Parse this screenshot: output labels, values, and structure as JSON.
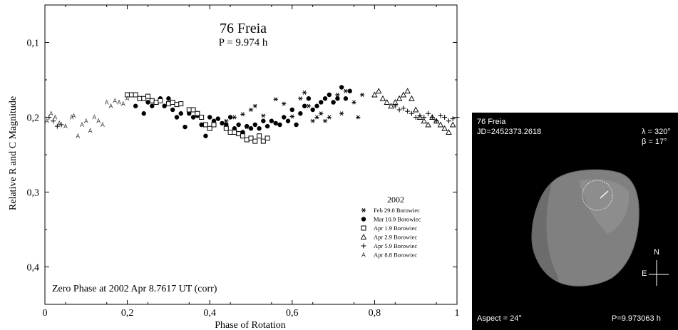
{
  "chart_data": {
    "type": "scatter",
    "title": "76 Freia",
    "subtitle": "P = 9.974 h",
    "xlabel": "Phase of Rotation",
    "ylabel": "Relative R and C Magnitude",
    "xlim": [
      0,
      1
    ],
    "ylim": [
      0.45,
      0.05
    ],
    "y_inverted": true,
    "x_ticks": [
      0,
      0.2,
      0.4,
      0.6,
      0.8,
      1
    ],
    "x_tick_labels": [
      "0",
      "0,2",
      "0,4",
      "0,6",
      "0,8",
      "1"
    ],
    "y_ticks": [
      0.1,
      0.2,
      0.3,
      0.4
    ],
    "y_tick_labels": [
      "0,1",
      "0,2",
      "0,3",
      "0,4"
    ],
    "annotation": "Zero Phase at 2002 Apr 8.7617 UT (corr)",
    "legend_title": "2002",
    "legend_position": "bottom-right",
    "series": [
      {
        "name": "Feb 29.0 Borowiec",
        "marker": "asterisk",
        "x": [
          0.44,
          0.46,
          0.48,
          0.49,
          0.5,
          0.51,
          0.53,
          0.56,
          0.58,
          0.6,
          0.62,
          0.63,
          0.64,
          0.65,
          0.66,
          0.67,
          0.68,
          0.69,
          0.7,
          0.71,
          0.72,
          0.73,
          0.75,
          0.76,
          0.77
        ],
        "y": [
          0.205,
          0.2,
          0.196,
          0.213,
          0.19,
          0.185,
          0.198,
          0.176,
          0.182,
          0.199,
          0.175,
          0.167,
          0.185,
          0.205,
          0.2,
          0.195,
          0.205,
          0.2,
          0.18,
          0.17,
          0.195,
          0.165,
          0.18,
          0.2,
          0.17
        ]
      },
      {
        "name": "Mar 10.9 Borowiec",
        "marker": "filled-circle",
        "x": [
          0.22,
          0.24,
          0.25,
          0.26,
          0.27,
          0.28,
          0.29,
          0.3,
          0.31,
          0.32,
          0.33,
          0.34,
          0.35,
          0.36,
          0.37,
          0.38,
          0.39,
          0.4,
          0.41,
          0.42,
          0.43,
          0.44,
          0.45,
          0.46,
          0.47,
          0.48,
          0.49,
          0.5,
          0.51,
          0.52,
          0.53,
          0.54,
          0.55,
          0.56,
          0.57,
          0.58,
          0.59,
          0.6,
          0.61,
          0.62,
          0.63,
          0.64,
          0.65,
          0.66,
          0.67,
          0.68,
          0.69,
          0.7,
          0.71,
          0.72,
          0.73,
          0.74
        ],
        "y": [
          0.185,
          0.195,
          0.18,
          0.185,
          0.18,
          0.175,
          0.185,
          0.175,
          0.19,
          0.2,
          0.195,
          0.213,
          0.195,
          0.2,
          0.198,
          0.21,
          0.225,
          0.2,
          0.205,
          0.202,
          0.208,
          0.21,
          0.2,
          0.215,
          0.21,
          0.22,
          0.212,
          0.215,
          0.21,
          0.215,
          0.205,
          0.212,
          0.205,
          0.208,
          0.21,
          0.2,
          0.205,
          0.19,
          0.21,
          0.195,
          0.185,
          0.175,
          0.19,
          0.185,
          0.18,
          0.175,
          0.17,
          0.18,
          0.175,
          0.16,
          0.175,
          0.165
        ]
      },
      {
        "name": "Apr 1.9 Borowiec",
        "marker": "open-square",
        "x": [
          0.2,
          0.21,
          0.22,
          0.23,
          0.24,
          0.25,
          0.26,
          0.27,
          0.28,
          0.3,
          0.31,
          0.32,
          0.33,
          0.35,
          0.36,
          0.37,
          0.38,
          0.39,
          0.4,
          0.41,
          0.44,
          0.45,
          0.46,
          0.47,
          0.48,
          0.49,
          0.5,
          0.51,
          0.52,
          0.53,
          0.54
        ],
        "y": [
          0.17,
          0.17,
          0.17,
          0.175,
          0.175,
          0.172,
          0.178,
          0.18,
          0.178,
          0.182,
          0.18,
          0.183,
          0.182,
          0.19,
          0.19,
          0.195,
          0.2,
          0.21,
          0.215,
          0.21,
          0.215,
          0.22,
          0.22,
          0.222,
          0.225,
          0.23,
          0.228,
          0.232,
          0.225,
          0.232,
          0.228
        ]
      },
      {
        "name": "Apr 2.9 Borowiec",
        "marker": "open-triangle",
        "x": [
          0.8,
          0.81,
          0.82,
          0.83,
          0.84,
          0.85,
          0.86,
          0.87,
          0.88,
          0.89,
          0.9,
          0.91,
          0.92,
          0.93,
          0.94,
          0.95,
          0.96,
          0.97,
          0.98,
          0.99
        ],
        "y": [
          0.17,
          0.165,
          0.175,
          0.18,
          0.185,
          0.18,
          0.175,
          0.17,
          0.165,
          0.175,
          0.19,
          0.2,
          0.205,
          0.21,
          0.2,
          0.205,
          0.21,
          0.215,
          0.22,
          0.21
        ]
      },
      {
        "name": "Apr 5.9 Borowiec",
        "marker": "plus",
        "x": [
          0.01,
          0.02,
          0.03,
          0.04,
          0.85,
          0.86,
          0.87,
          0.88,
          0.89,
          0.9,
          0.91,
          0.92,
          0.93,
          0.94,
          0.95,
          0.96,
          0.97,
          0.98,
          0.99,
          1.0
        ],
        "y": [
          0.2,
          0.205,
          0.212,
          0.21,
          0.185,
          0.19,
          0.188,
          0.192,
          0.195,
          0.2,
          0.198,
          0.2,
          0.195,
          0.2,
          0.205,
          0.198,
          0.2,
          0.205,
          0.202,
          0.2
        ]
      },
      {
        "name": "Apr 8.8 Borowiec",
        "marker": "letter-a",
        "x": [
          0.005,
          0.015,
          0.025,
          0.035,
          0.05,
          0.065,
          0.07,
          0.08,
          0.09,
          0.1,
          0.11,
          0.12,
          0.13,
          0.14,
          0.15,
          0.16,
          0.17,
          0.18,
          0.19,
          0.2
        ],
        "y": [
          0.205,
          0.195,
          0.2,
          0.208,
          0.212,
          0.2,
          0.198,
          0.225,
          0.21,
          0.205,
          0.218,
          0.2,
          0.205,
          0.21,
          0.18,
          0.185,
          0.178,
          0.18,
          0.182,
          0.175
        ]
      }
    ]
  },
  "model_panel": {
    "name": "76 Freia",
    "jd": "JD=2452373.2618",
    "lambda": "λ = 320°",
    "beta": "β =  17°",
    "north": "N",
    "east": "E",
    "aspect": "Aspect = 24°",
    "period": "P=9.973063 h",
    "colors": {
      "background": "#000000",
      "text": "#ffffff",
      "body": "#808080"
    }
  }
}
